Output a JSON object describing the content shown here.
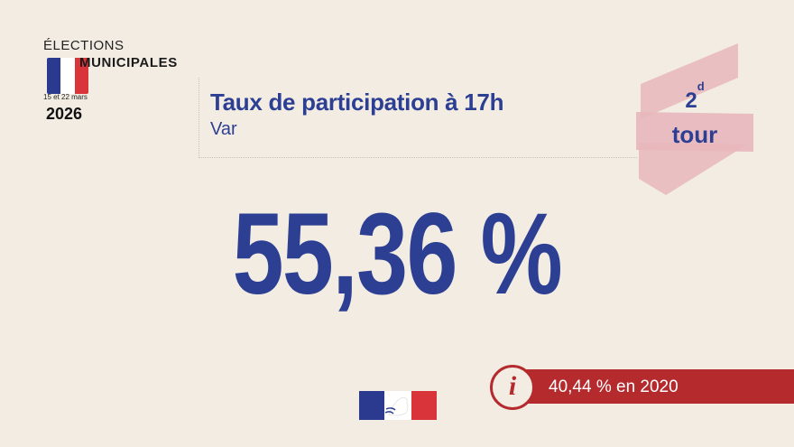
{
  "logo": {
    "line1": "ÉLECTIONS",
    "line2": "MUNICIPALES",
    "dates": "15 et 22 mars",
    "year": "2026",
    "flag_colors": [
      "#2b3a8f",
      "#ffffff",
      "#d8343a"
    ]
  },
  "header": {
    "title": "Taux de participation à 17h",
    "subtitle": "Var"
  },
  "badge": {
    "number": "2",
    "superscript": "d",
    "label": "tour",
    "color": "#e7b7bb"
  },
  "main_value": "55,36 %",
  "info": {
    "text": "40,44 % en 2020",
    "icon": "info-icon",
    "color": "#b52a2d"
  },
  "footer": {
    "icon": "marianne-logo-icon"
  },
  "colors": {
    "primary": "#2c3f93",
    "background": "#f2ece3"
  }
}
